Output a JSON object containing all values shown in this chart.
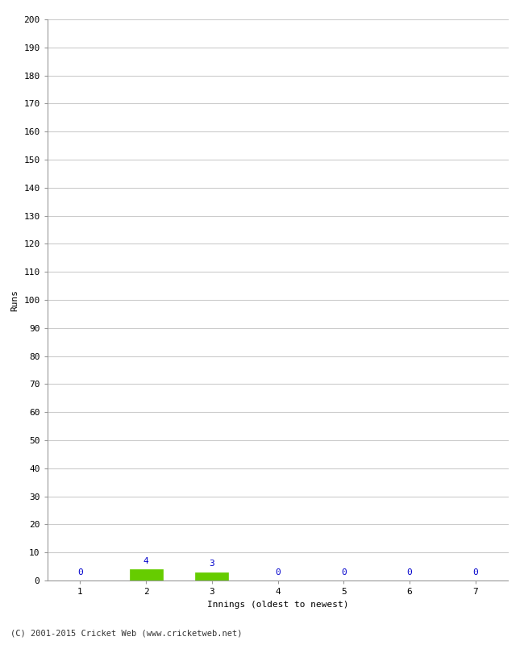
{
  "xlabel": "Innings (oldest to newest)",
  "ylabel": "Runs",
  "categories": [
    1,
    2,
    3,
    4,
    5,
    6,
    7
  ],
  "values": [
    0,
    4,
    3,
    0,
    0,
    0,
    0
  ],
  "bar_color_green": "#66cc00",
  "bar_color_zero": "#0000cc",
  "ylim": [
    0,
    200
  ],
  "yticks": [
    0,
    10,
    20,
    30,
    40,
    50,
    60,
    70,
    80,
    90,
    100,
    110,
    120,
    130,
    140,
    150,
    160,
    170,
    180,
    190,
    200
  ],
  "background_color": "#ffffff",
  "grid_color": "#cccccc",
  "footer": "(C) 2001-2015 Cricket Web (www.cricketweb.net)",
  "label_fontsize": 8,
  "tick_fontsize": 8,
  "footer_fontsize": 7.5,
  "value_label_fontsize": 8
}
